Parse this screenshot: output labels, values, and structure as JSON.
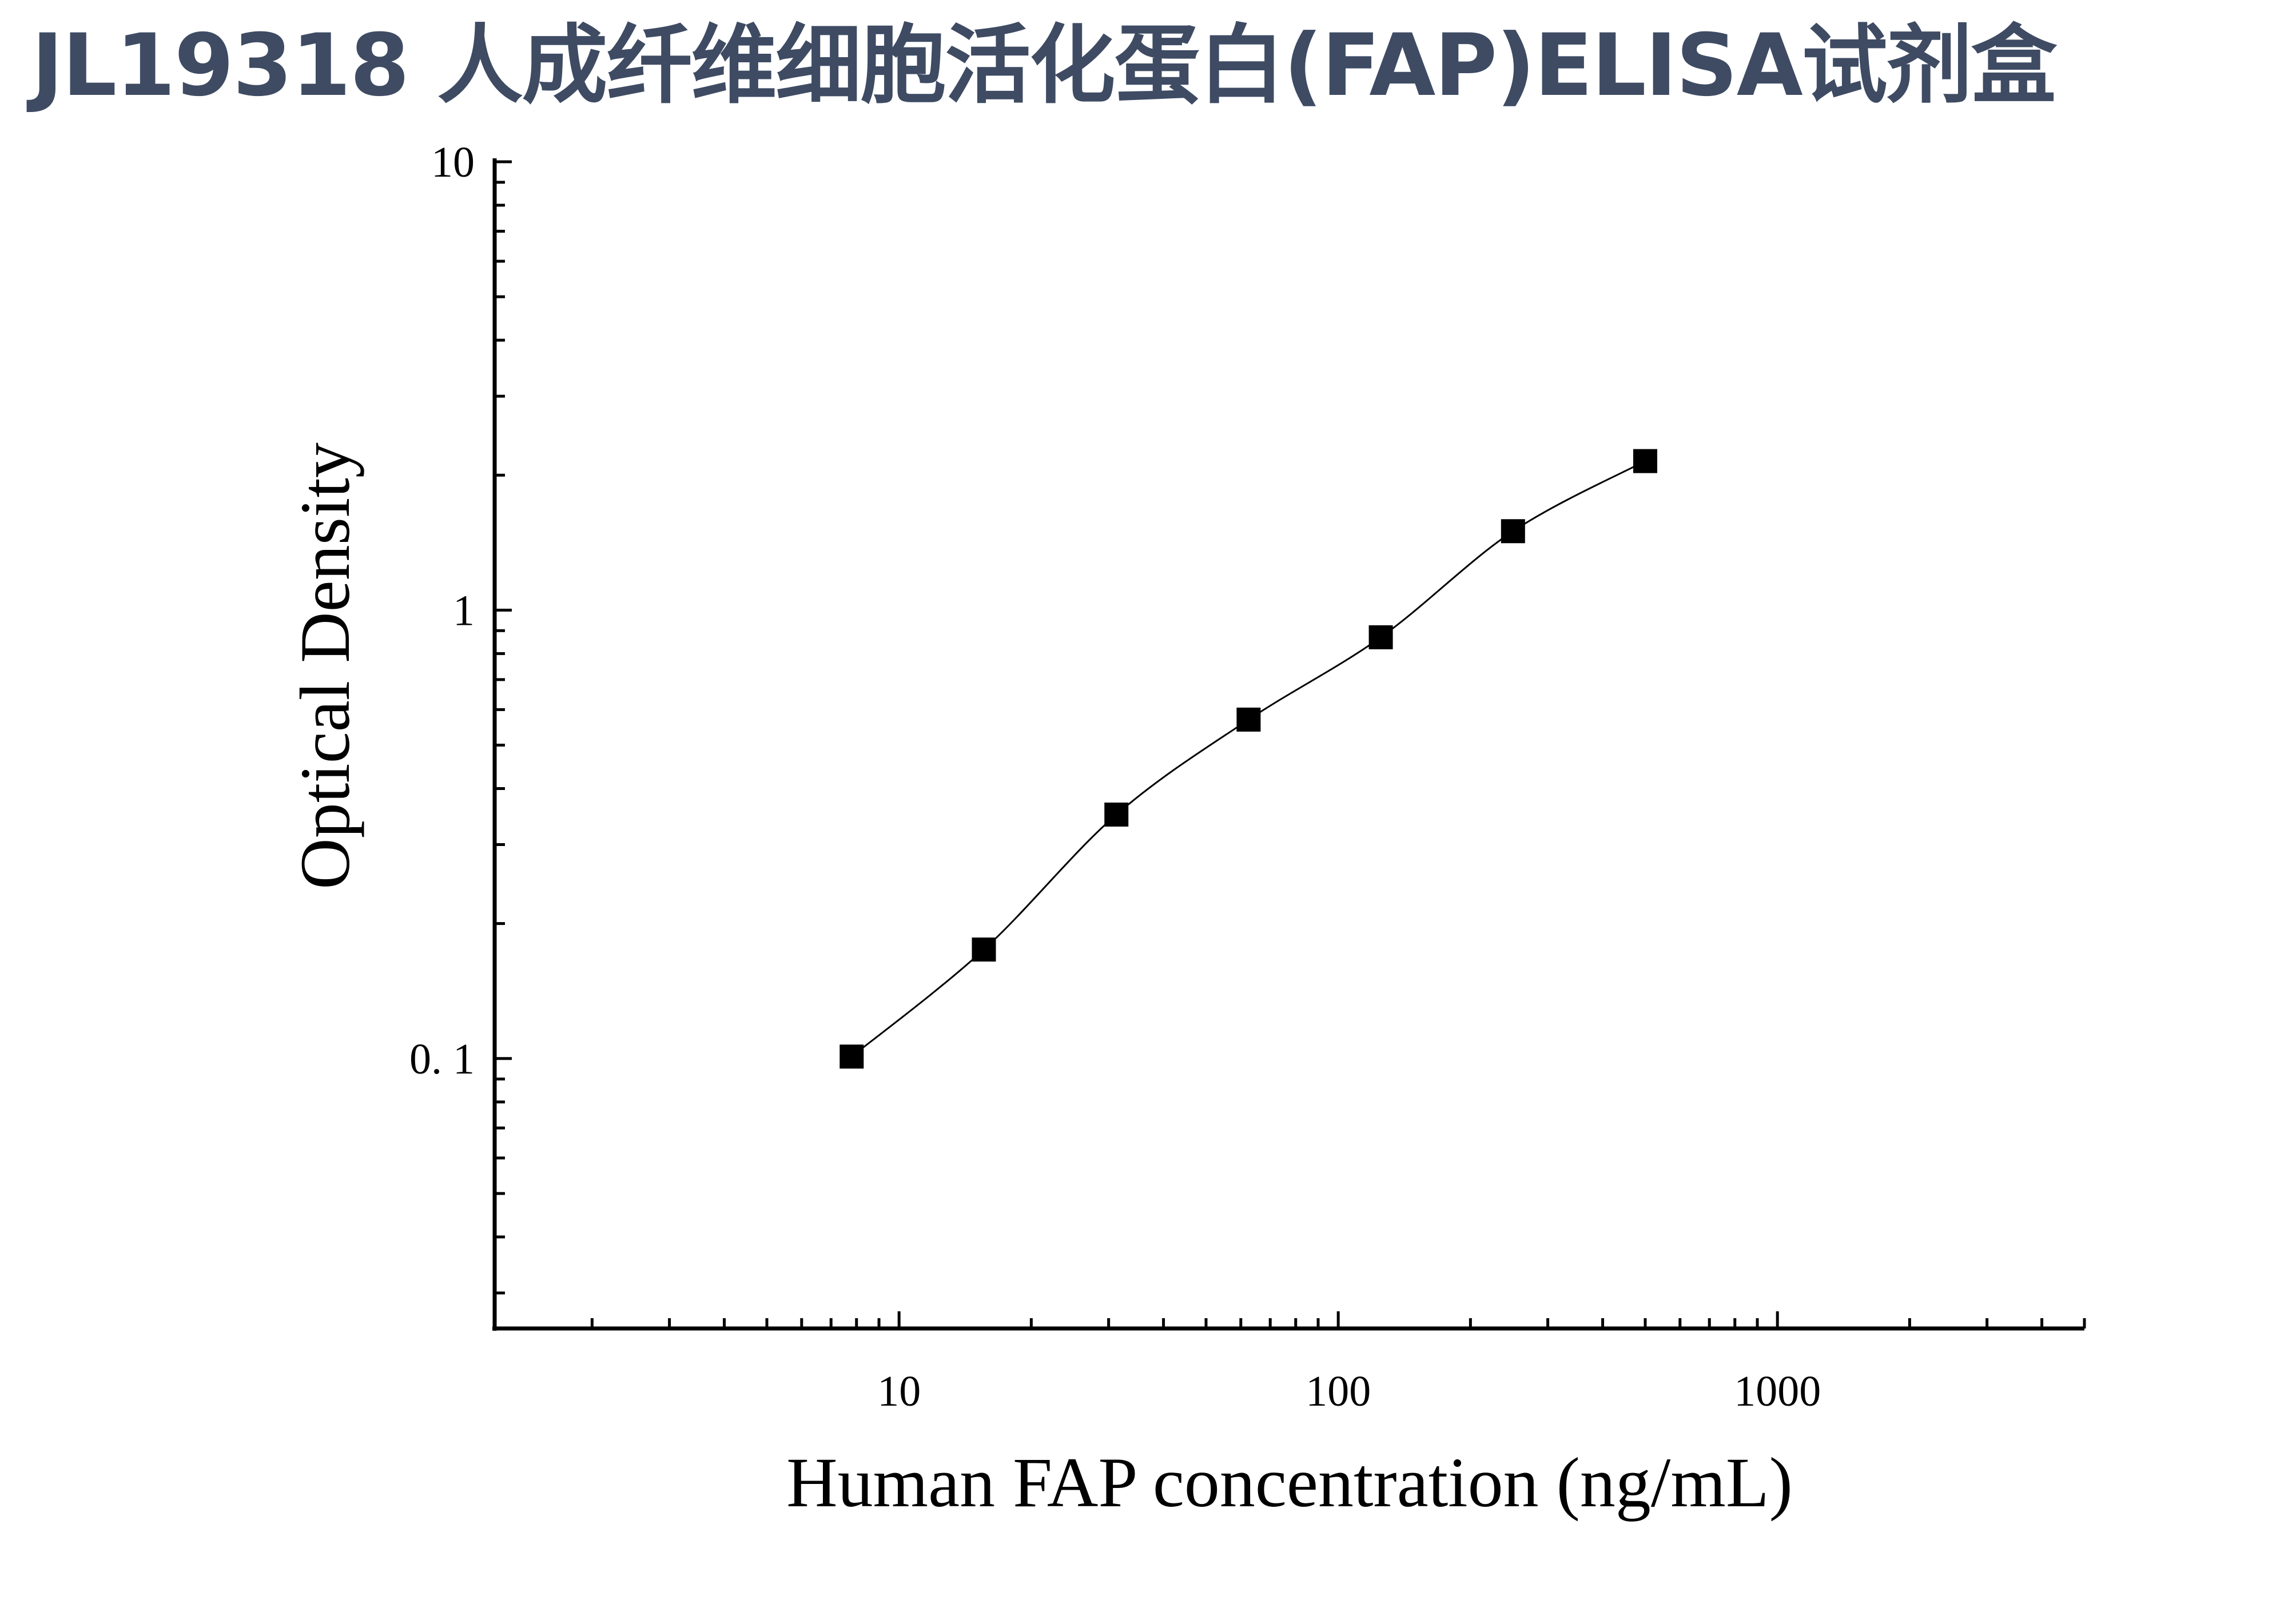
{
  "title": "JL19318 人成纤维细胞活化蛋白(FAP)ELISA试剂盒",
  "chart_data": {
    "type": "scatter",
    "title": "JL19318 人成纤维细胞活化蛋白(FAP)ELISA试剂盒",
    "xlabel": "Human FAP concentration (ng/mL)",
    "ylabel": "Optical Density",
    "x_scale": "log",
    "y_scale": "log",
    "xlim": [
      1.2,
      5000
    ],
    "ylim": [
      0.025,
      10
    ],
    "x_tick_labels": [
      {
        "value": 10,
        "label": "10"
      },
      {
        "value": 100,
        "label": "100"
      },
      {
        "value": 1000,
        "label": "1000"
      }
    ],
    "y_tick_labels": [
      {
        "value": 10,
        "label": "10"
      },
      {
        "value": 1,
        "label": "1"
      },
      {
        "value": 0.1,
        "label": "0. 1"
      }
    ],
    "grid": false,
    "legend": "none",
    "marker": "square",
    "fit_line": true,
    "color": "#000000",
    "series": [
      {
        "x": [
          7.8,
          15.6,
          31.25,
          62.5,
          125,
          250,
          500
        ],
        "y": [
          0.101,
          0.175,
          0.35,
          0.57,
          0.87,
          1.5,
          2.15
        ]
      }
    ]
  }
}
